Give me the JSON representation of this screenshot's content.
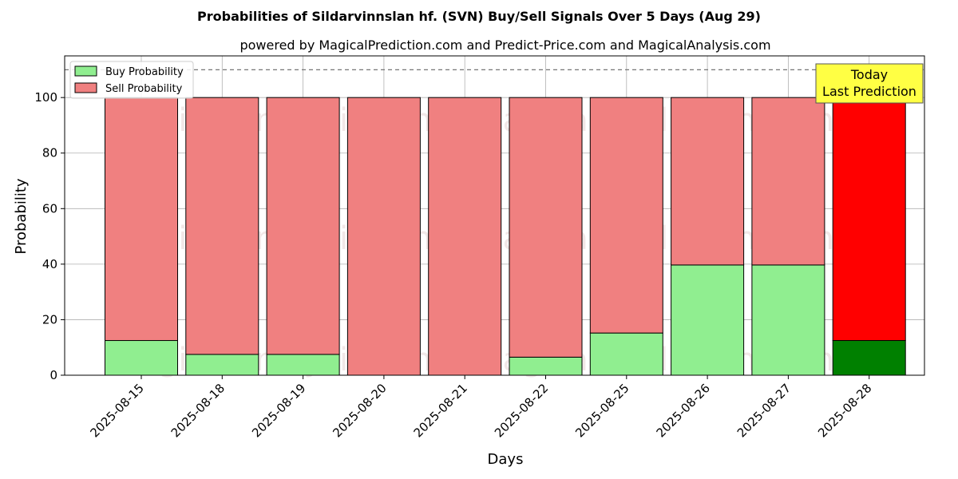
{
  "chart_data": {
    "type": "bar",
    "stacked": true,
    "title": "Probabilities of Sildarvinnslan hf. (SVN) Buy/Sell Signals Over 5 Days (Aug 29)",
    "subtitle": "powered by MagicalPrediction.com and Predict-Price.com and MagicalAnalysis.com",
    "xlabel": "Days",
    "ylabel": "Probability",
    "ylim": [
      0,
      115
    ],
    "yticks": [
      0,
      20,
      40,
      60,
      80,
      100
    ],
    "grid": true,
    "legend_position": "top-left",
    "categories": [
      "2025-08-15",
      "2025-08-18",
      "2025-08-19",
      "2025-08-20",
      "2025-08-21",
      "2025-08-22",
      "2025-08-25",
      "2025-08-26",
      "2025-08-27",
      "2025-08-28"
    ],
    "series": [
      {
        "name": "Buy Probability",
        "color": "#90ee90",
        "highlight_color": "#008000",
        "values": [
          12.5,
          7.5,
          7.5,
          0,
          0,
          6.5,
          15.2,
          39.7,
          39.7,
          12.5
        ]
      },
      {
        "name": "Sell Probability",
        "color": "#f08080",
        "highlight_color": "#ff0000",
        "values": [
          87.5,
          92.5,
          92.5,
          100,
          100,
          93.5,
          84.8,
          60.3,
          60.3,
          87.5
        ]
      }
    ],
    "reference_line": {
      "y": 110,
      "style": "dashed"
    },
    "annotation": {
      "lines": [
        "Today",
        "Last Prediction"
      ],
      "category_index": 9,
      "background": "#ffff44"
    },
    "watermarks": [
      "MagicalAnalysis.com",
      "MagicalPrediction.com"
    ]
  }
}
